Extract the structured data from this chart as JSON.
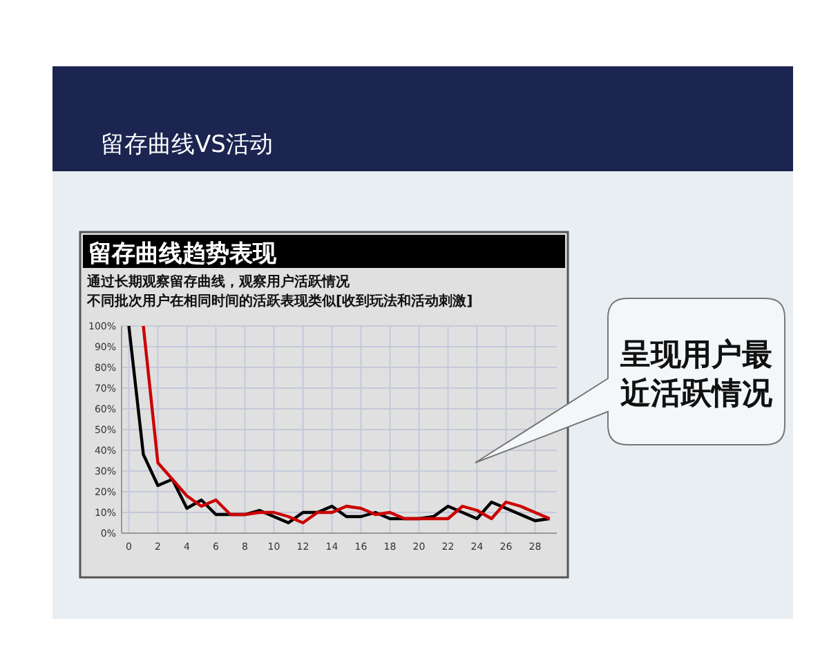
{
  "chart_data": {
    "type": "line",
    "title": "留存曲线VS活动",
    "subtitle": "留存曲线趋势表现",
    "annotations": [
      "通过长期观察留存曲线，观察用户活跃情况",
      "不同批次用户在相同时间的活跃表现类似[收到玩法和活动刺激]",
      "呈现用户最近活跃情况"
    ],
    "x": [
      0,
      1,
      2,
      3,
      4,
      5,
      6,
      7,
      8,
      9,
      10,
      11,
      12,
      13,
      14,
      15,
      16,
      17,
      18,
      19,
      20,
      21,
      22,
      23,
      24,
      25,
      26,
      27,
      28,
      29
    ],
    "series": [
      {
        "color": "#000000",
        "values": [
          100,
          38,
          23,
          26,
          12,
          16,
          9,
          9,
          9,
          11,
          8,
          5,
          10,
          10,
          13,
          8,
          8,
          10,
          7,
          7,
          7,
          8,
          13,
          10,
          7,
          15,
          12,
          9,
          6,
          7
        ]
      },
      {
        "color": "#cc0000",
        "values": [
          null,
          100,
          34,
          26,
          18,
          13,
          16,
          9,
          9,
          10,
          10,
          8,
          5,
          10,
          10,
          13,
          12,
          9,
          10,
          7,
          7,
          7,
          7,
          13,
          11,
          7,
          15,
          13,
          10,
          7
        ]
      }
    ],
    "xlim": [
      -0.5,
      29.5
    ],
    "xticks": [
      0,
      2,
      4,
      6,
      8,
      10,
      12,
      14,
      16,
      18,
      20,
      22,
      24,
      26,
      28
    ],
    "ylim": [
      0,
      100
    ],
    "yticks": [
      {
        "value": 0,
        "label": "0%"
      },
      {
        "value": 10,
        "label": "10%"
      },
      {
        "value": 20,
        "label": "20%"
      },
      {
        "value": 30,
        "label": "30%"
      },
      {
        "value": 40,
        "label": "40%"
      },
      {
        "value": 50,
        "label": "50%"
      },
      {
        "value": 60,
        "label": "60%"
      },
      {
        "value": 70,
        "label": "70%"
      },
      {
        "value": 80,
        "label": "80%"
      },
      {
        "value": 90,
        "label": "90%"
      },
      {
        "value": 100,
        "label": "100%"
      }
    ],
    "grid": true,
    "marker": "none",
    "line_style": "solid"
  }
}
